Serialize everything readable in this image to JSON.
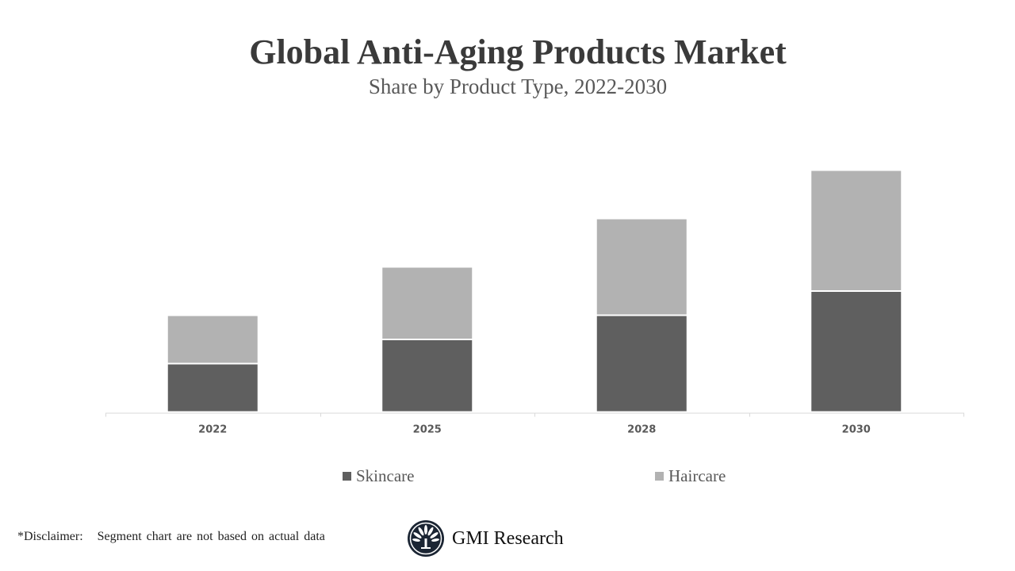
{
  "chart_data": {
    "type": "bar",
    "stacked": true,
    "title": "Global Anti-Aging Products Market",
    "subtitle": "Share by Product Type, 2022-2030",
    "categories": [
      "2022",
      "2025",
      "2028",
      "2030"
    ],
    "series": [
      {
        "name": "Skincare",
        "values": [
          2,
          3,
          4,
          5
        ],
        "color": "#5f5f5f"
      },
      {
        "name": "Haircare",
        "values": [
          2,
          3,
          4,
          5
        ],
        "color": "#b2b2b2"
      }
    ],
    "xlabel": "",
    "ylabel": "",
    "ylim": [
      0,
      10
    ],
    "y_axis_visible": false,
    "grid": false,
    "legend_position": "bottom"
  },
  "footer": {
    "disclaimer": "*Disclaimer:   Segment chart are not based on actual data",
    "brand": "GMI Research"
  }
}
